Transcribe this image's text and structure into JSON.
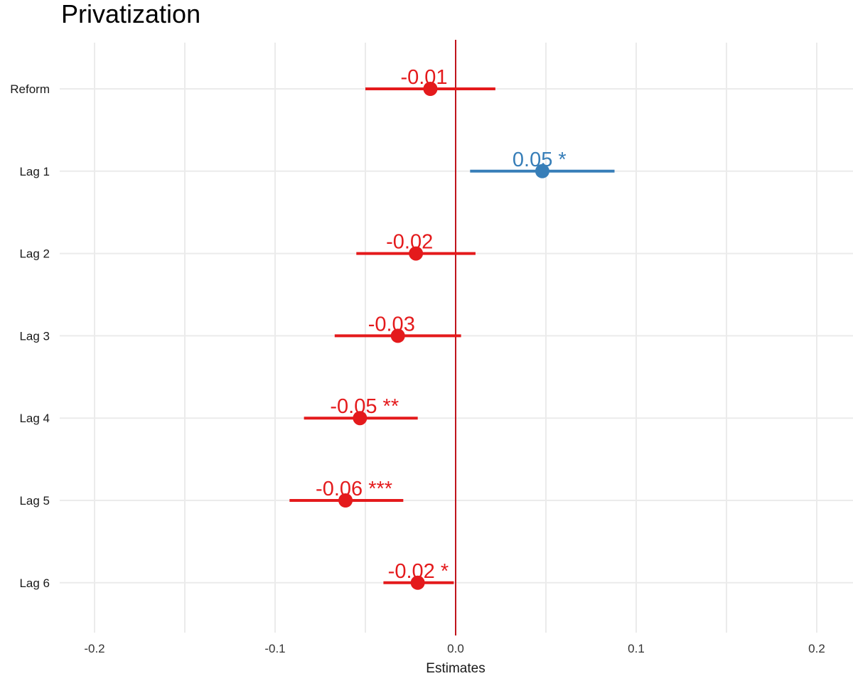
{
  "chart_data": {
    "type": "forest",
    "title": "Privatization",
    "xlabel": "Estimates",
    "ylabel": "",
    "xlim": [
      -0.22,
      0.22
    ],
    "x_ticks": [
      -0.2,
      -0.1,
      0.0,
      0.1,
      0.2
    ],
    "x_tick_labels": [
      "-0.2",
      "-0.1",
      "0.0",
      "0.1",
      "0.2"
    ],
    "reference_line": 0,
    "grid": true,
    "colors": {
      "negative": "#e41a1c",
      "positive": "#377eb8",
      "reference": "#c0141c",
      "grid": "#ebebeb"
    },
    "terms": [
      {
        "name": "Reform",
        "estimate": -0.014,
        "ci_low": -0.05,
        "ci_high": 0.022,
        "label": "-0.01",
        "sign": "negative"
      },
      {
        "name": "Lag 1",
        "estimate": 0.048,
        "ci_low": 0.008,
        "ci_high": 0.088,
        "label": "0.05 *",
        "sign": "positive"
      },
      {
        "name": "Lag 2",
        "estimate": -0.022,
        "ci_low": -0.055,
        "ci_high": 0.011,
        "label": "-0.02",
        "sign": "negative"
      },
      {
        "name": "Lag 3",
        "estimate": -0.032,
        "ci_low": -0.067,
        "ci_high": 0.003,
        "label": "-0.03",
        "sign": "negative"
      },
      {
        "name": "Lag 4",
        "estimate": -0.053,
        "ci_low": -0.084,
        "ci_high": -0.021,
        "label": "-0.05 **",
        "sign": "negative"
      },
      {
        "name": "Lag 5",
        "estimate": -0.061,
        "ci_low": -0.092,
        "ci_high": -0.029,
        "label": "-0.06 ***",
        "sign": "negative"
      },
      {
        "name": "Lag 6",
        "estimate": -0.021,
        "ci_low": -0.04,
        "ci_high": -0.001,
        "label": "-0.02 *",
        "sign": "negative"
      }
    ]
  }
}
